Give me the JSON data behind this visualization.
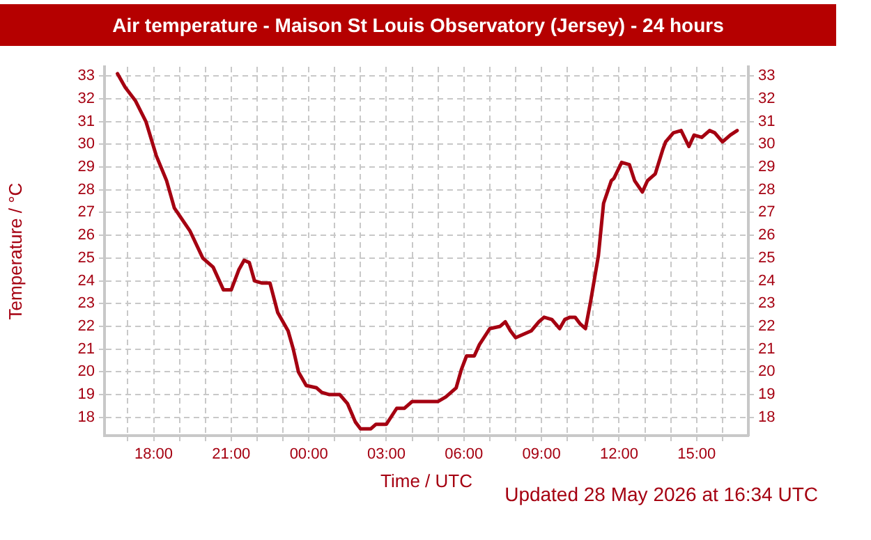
{
  "chart_data": {
    "type": "line",
    "title": "Air temperature - Maison St Louis Observatory (Jersey) - 24 hours",
    "xlabel": "Time / UTC",
    "ylabel": "Temperature / °C",
    "annotations": [
      "Updated 28 May 2026 at 16:34 UTC"
    ],
    "x": [
      "2026-05-27T16:36",
      "2026-05-27T16:54",
      "2026-05-27T17:18",
      "2026-05-27T17:42",
      "2026-05-27T18:06",
      "2026-05-27T18:30",
      "2026-05-27T18:48",
      "2026-05-27T19:24",
      "2026-05-27T19:54",
      "2026-05-27T20:18",
      "2026-05-27T20:42",
      "2026-05-27T21:00",
      "2026-05-27T21:18",
      "2026-05-27T21:30",
      "2026-05-27T21:42",
      "2026-05-27T21:54",
      "2026-05-27T22:12",
      "2026-05-27T22:30",
      "2026-05-27T22:48",
      "2026-05-27T23:12",
      "2026-05-27T23:24",
      "2026-05-27T23:36",
      "2026-05-27T23:54",
      "2026-05-28T00:18",
      "2026-05-28T00:30",
      "2026-05-28T00:48",
      "2026-05-28T01:12",
      "2026-05-28T01:30",
      "2026-05-28T01:48",
      "2026-05-28T02:00",
      "2026-05-28T02:24",
      "2026-05-28T02:36",
      "2026-05-28T03:00",
      "2026-05-28T03:24",
      "2026-05-28T03:42",
      "2026-05-28T04:00",
      "2026-05-28T04:18",
      "2026-05-28T04:42",
      "2026-05-28T05:00",
      "2026-05-28T05:18",
      "2026-05-28T05:42",
      "2026-05-28T05:54",
      "2026-05-28T06:06",
      "2026-05-28T06:24",
      "2026-05-28T06:36",
      "2026-05-28T07:00",
      "2026-05-28T07:24",
      "2026-05-28T07:36",
      "2026-05-28T07:48",
      "2026-05-28T08:00",
      "2026-05-28T08:12",
      "2026-05-28T08:36",
      "2026-05-28T08:54",
      "2026-05-28T09:06",
      "2026-05-28T09:24",
      "2026-05-28T09:42",
      "2026-05-28T09:54",
      "2026-05-28T10:06",
      "2026-05-28T10:18",
      "2026-05-28T10:30",
      "2026-05-28T10:42",
      "2026-05-28T10:54",
      "2026-05-28T11:12",
      "2026-05-28T11:24",
      "2026-05-28T11:42",
      "2026-05-28T11:48",
      "2026-05-28T12:06",
      "2026-05-28T12:24",
      "2026-05-28T12:36",
      "2026-05-28T12:54",
      "2026-05-28T13:06",
      "2026-05-28T13:24",
      "2026-05-28T13:42",
      "2026-05-28T13:48",
      "2026-05-28T14:06",
      "2026-05-28T14:24",
      "2026-05-28T14:42",
      "2026-05-28T14:54",
      "2026-05-28T15:12",
      "2026-05-28T15:30",
      "2026-05-28T15:42",
      "2026-05-28T16:00",
      "2026-05-28T16:18",
      "2026-05-28T16:34"
    ],
    "series": [
      {
        "color": "#a50011",
        "values": [
          33.1,
          32.5,
          31.9,
          31.0,
          29.5,
          28.4,
          27.2,
          26.2,
          25.0,
          24.6,
          23.6,
          23.6,
          24.5,
          24.9,
          24.8,
          24.0,
          23.9,
          23.9,
          22.6,
          21.8,
          21.0,
          20.0,
          19.4,
          19.3,
          19.1,
          19.0,
          19.0,
          18.6,
          17.8,
          17.5,
          17.5,
          17.7,
          17.7,
          18.4,
          18.4,
          18.7,
          18.7,
          18.7,
          18.7,
          18.9,
          19.3,
          20.1,
          20.7,
          20.7,
          21.2,
          21.9,
          22.0,
          22.2,
          21.8,
          21.5,
          21.6,
          21.8,
          22.2,
          22.4,
          22.3,
          21.9,
          22.3,
          22.4,
          22.4,
          22.1,
          21.9,
          23.1,
          25.1,
          27.4,
          28.4,
          28.5,
          29.2,
          29.1,
          28.4,
          27.9,
          28.4,
          28.7,
          29.8,
          30.1,
          30.5,
          30.6,
          29.9,
          30.4,
          30.3,
          30.6,
          30.5,
          30.1,
          30.4,
          30.6
        ]
      }
    ],
    "xlim": [
      "2026-05-27T16:06",
      "2026-05-28T17:00"
    ],
    "xticks": [
      {
        "value": "2026-05-27T17:00",
        "label": null
      },
      {
        "value": "2026-05-27T18:00",
        "label": "18:00"
      },
      {
        "value": "2026-05-27T19:00",
        "label": null
      },
      {
        "value": "2026-05-27T20:00",
        "label": null
      },
      {
        "value": "2026-05-27T21:00",
        "label": "21:00"
      },
      {
        "value": "2026-05-27T22:00",
        "label": null
      },
      {
        "value": "2026-05-27T23:00",
        "label": null
      },
      {
        "value": "2026-05-28T00:00",
        "label": "00:00"
      },
      {
        "value": "2026-05-28T01:00",
        "label": null
      },
      {
        "value": "2026-05-28T02:00",
        "label": null
      },
      {
        "value": "2026-05-28T03:00",
        "label": "03:00"
      },
      {
        "value": "2026-05-28T04:00",
        "label": null
      },
      {
        "value": "2026-05-28T05:00",
        "label": null
      },
      {
        "value": "2026-05-28T06:00",
        "label": "06:00"
      },
      {
        "value": "2026-05-28T07:00",
        "label": null
      },
      {
        "value": "2026-05-28T08:00",
        "label": null
      },
      {
        "value": "2026-05-28T09:00",
        "label": "09:00"
      },
      {
        "value": "2026-05-28T10:00",
        "label": null
      },
      {
        "value": "2026-05-28T11:00",
        "label": null
      },
      {
        "value": "2026-05-28T12:00",
        "label": "12:00"
      },
      {
        "value": "2026-05-28T13:00",
        "label": null
      },
      {
        "value": "2026-05-28T14:00",
        "label": null
      },
      {
        "value": "2026-05-28T15:00",
        "label": "15:00"
      },
      {
        "value": "2026-05-28T16:00",
        "label": null
      }
    ],
    "ylim": [
      17.2,
      33.4
    ],
    "yticks": [
      18,
      19,
      20,
      21,
      22,
      23,
      24,
      25,
      26,
      27,
      28,
      29,
      30,
      31,
      32,
      33
    ],
    "y2lim": [
      17.2,
      33.4
    ],
    "y2ticks": [
      18,
      19,
      20,
      21,
      22,
      23,
      24,
      25,
      26,
      27,
      28,
      29,
      30,
      31,
      32,
      33
    ],
    "grid": true,
    "marker": "none",
    "line_style": "solid"
  }
}
